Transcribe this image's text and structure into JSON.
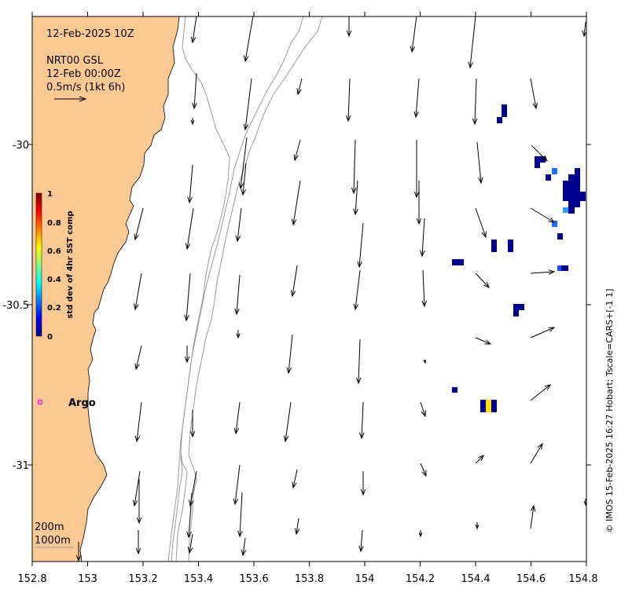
{
  "header": {
    "date_line": "12-Feb-2025 10Z",
    "product_line": "NRT00 GSL",
    "time_line": "12-Feb 00:00Z",
    "scale_line": "0.5m/s (1kt 6h)"
  },
  "axes": {
    "x_ticks": [
      "152.8",
      "153",
      "153.2",
      "153.4",
      "153.6",
      "153.8",
      "154",
      "154.2",
      "154.4",
      "154.6",
      "154.8"
    ],
    "y_ticks": [
      "-30",
      "-30.5",
      "-31"
    ],
    "x_range": [
      152.8,
      154.8
    ],
    "y_range": [
      -31.3,
      -29.6
    ]
  },
  "colorbar": {
    "title": "std dev of 4hr SST comp",
    "tick_labels": [
      "0",
      "0.2",
      "0.4",
      "0.6",
      "0.8",
      "1"
    ],
    "range": [
      0,
      1
    ]
  },
  "legend": {
    "argo_label": "Argo",
    "argo_color": "#ff00ff",
    "contour_200": "200m",
    "contour_1000": "1000m"
  },
  "credit": "© IMOS 15-Feb-2025 16:27 Hobart; Tscale=CARS+[-1 1]",
  "colors": {
    "land": "#fcc994",
    "contour": "#9a9a9a",
    "vector": "#000000"
  }
}
